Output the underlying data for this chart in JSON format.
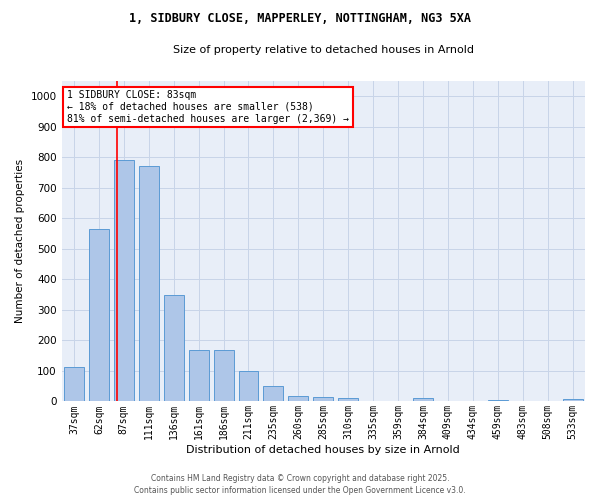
{
  "title1": "1, SIDBURY CLOSE, MAPPERLEY, NOTTINGHAM, NG3 5XA",
  "title2": "Size of property relative to detached houses in Arnold",
  "xlabel": "Distribution of detached houses by size in Arnold",
  "ylabel": "Number of detached properties",
  "bar_labels": [
    "37sqm",
    "62sqm",
    "87sqm",
    "111sqm",
    "136sqm",
    "161sqm",
    "186sqm",
    "211sqm",
    "235sqm",
    "260sqm",
    "285sqm",
    "310sqm",
    "335sqm",
    "359sqm",
    "384sqm",
    "409sqm",
    "434sqm",
    "459sqm",
    "483sqm",
    "508sqm",
    "533sqm"
  ],
  "bar_heights": [
    112,
    565,
    790,
    770,
    348,
    168,
    168,
    98,
    52,
    18,
    13,
    12,
    0,
    0,
    10,
    0,
    0,
    5,
    0,
    0,
    7
  ],
  "bar_color": "#aec6e8",
  "bar_edge_color": "#5b9bd5",
  "bar_width": 0.8,
  "red_line_x": 1.72,
  "annotation_text": "1 SIDBURY CLOSE: 83sqm\n← 18% of detached houses are smaller (538)\n81% of semi-detached houses are larger (2,369) →",
  "annotation_box_color": "white",
  "annotation_box_edge_color": "red",
  "ylim": [
    0,
    1050
  ],
  "yticks": [
    0,
    100,
    200,
    300,
    400,
    500,
    600,
    700,
    800,
    900,
    1000
  ],
  "grid_color": "#c8d4e8",
  "bg_color": "#e8eef8",
  "footer1": "Contains HM Land Registry data © Crown copyright and database right 2025.",
  "footer2": "Contains public sector information licensed under the Open Government Licence v3.0."
}
